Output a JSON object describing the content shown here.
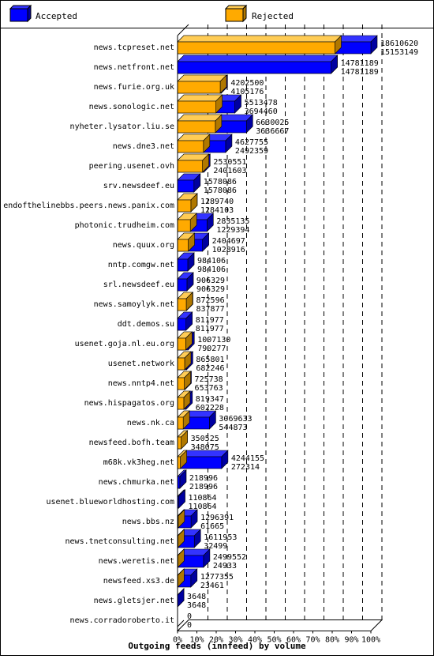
{
  "chart_data": {
    "type": "bar",
    "orientation": "horizontal",
    "stacked": "overlay-3d",
    "title": "Outgoing feeds (innfeed) by volume",
    "legend_position": "top",
    "grid": true,
    "xlim": [
      0,
      100
    ],
    "x_ticks": [
      "0%",
      "10%",
      "20%",
      "30%",
      "40%",
      "50%",
      "60%",
      "70%",
      "80%",
      "90%",
      "100%"
    ],
    "colors": {
      "accepted": "#0000ff",
      "rejected": "#ffaa00",
      "accepted_dark": "#0000a0",
      "rejected_dark": "#b07800"
    },
    "series": [
      {
        "name": "Accepted",
        "key": "accepted"
      },
      {
        "name": "Rejected",
        "key": "rejected"
      }
    ],
    "rows": [
      {
        "label": "news.tcpreset.net",
        "accepted": 18610620,
        "rejected": 15153149
      },
      {
        "label": "news.netfront.net",
        "accepted": 14781189,
        "rejected": 14781189
      },
      {
        "label": "news.furie.org.uk",
        "accepted": 4202500,
        "rejected": 4105176
      },
      {
        "label": "news.sonologic.net",
        "accepted": 5513478,
        "rejected": 3694460
      },
      {
        "label": "nyheter.lysator.liu.se",
        "accepted": 6630025,
        "rejected": 3636667
      },
      {
        "label": "news.dne3.net",
        "accepted": 4627755,
        "rejected": 2492359
      },
      {
        "label": "peering.usenet.ovh",
        "accepted": 2530551,
        "rejected": 2401603
      },
      {
        "label": "srv.newsdeef.eu",
        "accepted": 1578086,
        "rejected": 1578086
      },
      {
        "label": "endofthelinebbs.peers.news.panix.com",
        "accepted": 1289740,
        "rejected": 1284103
      },
      {
        "label": "photonic.trudheim.com",
        "accepted": 2835135,
        "rejected": 1229394
      },
      {
        "label": "news.quux.org",
        "accepted": 2404697,
        "rejected": 1028916
      },
      {
        "label": "nntp.comgw.net",
        "accepted": 984106,
        "rejected": 984106
      },
      {
        "label": "srl.newsdeef.eu",
        "accepted": 906329,
        "rejected": 906329
      },
      {
        "label": "news.samoylyk.net",
        "accepted": 872596,
        "rejected": 837877
      },
      {
        "label": "ddt.demos.su",
        "accepted": 811977,
        "rejected": 811977
      },
      {
        "label": "usenet.goja.nl.eu.org",
        "accepted": 1007130,
        "rejected": 790277
      },
      {
        "label": "usenet.network",
        "accepted": 865801,
        "rejected": 682246
      },
      {
        "label": "news.nntp4.net",
        "accepted": 725738,
        "rejected": 653763
      },
      {
        "label": "news.hispagatos.org",
        "accepted": 819347,
        "rejected": 602228
      },
      {
        "label": "news.nk.ca",
        "accepted": 3069633,
        "rejected": 544873
      },
      {
        "label": "newsfeed.bofh.team",
        "accepted": 350525,
        "rejected": 348075
      },
      {
        "label": "m68k.vk3heg.net",
        "accepted": 4244155,
        "rejected": 272314
      },
      {
        "label": "news.chmurka.net",
        "accepted": 218996,
        "rejected": 218996
      },
      {
        "label": "usenet.blueworldhosting.com",
        "accepted": 110864,
        "rejected": 110864
      },
      {
        "label": "news.bbs.nz",
        "accepted": 1296391,
        "rejected": 61665
      },
      {
        "label": "news.tnetconsulting.net",
        "accepted": 1611953,
        "rejected": 32499
      },
      {
        "label": "news.weretis.net",
        "accepted": 2499552,
        "rejected": 24933
      },
      {
        "label": "newsfeed.xs3.de",
        "accepted": 1277355,
        "rejected": 23461
      },
      {
        "label": "news.gletsjer.net",
        "accepted": 3648,
        "rejected": 3648
      },
      {
        "label": "news.corradoroberto.it",
        "accepted": 0,
        "rejected": 0
      }
    ]
  }
}
